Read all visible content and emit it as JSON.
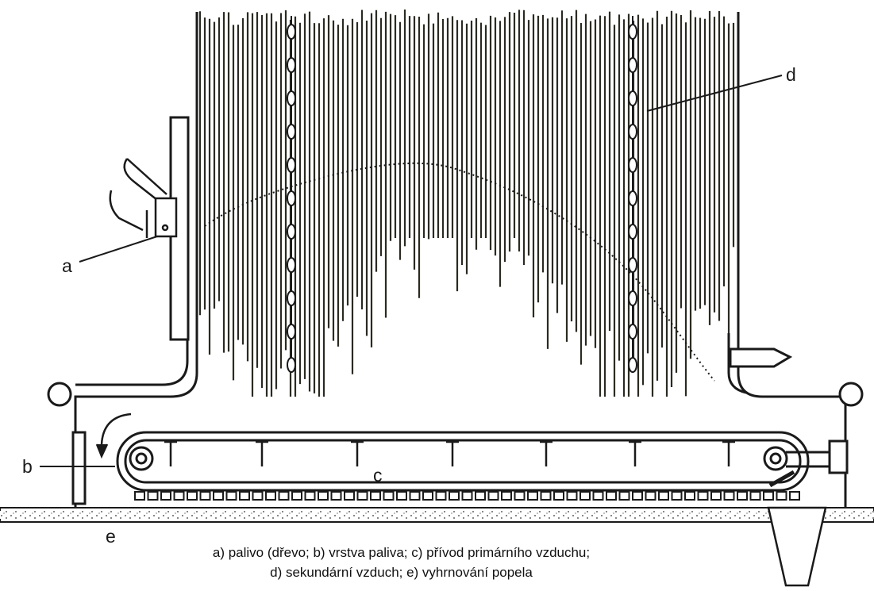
{
  "diagram": {
    "labels": {
      "a": "a",
      "b": "b",
      "c": "c",
      "d": "d",
      "e": "e"
    },
    "caption": {
      "line1": "a) palivo (dřevo; b) vrstva paliva; c) přívod primárního vzduchu;",
      "line2": "d) sekundární vzduch; e) vyhrnování popela"
    },
    "colors": {
      "ink": "#1a1a1a",
      "tube": "#2a2a22",
      "background": "#ffffff"
    }
  }
}
